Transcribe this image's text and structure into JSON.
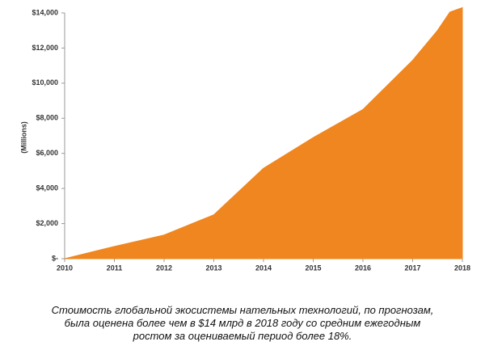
{
  "chart_data": {
    "type": "area",
    "y_label": "(Millions)",
    "x": [
      2010,
      2011,
      2012,
      2013,
      2014,
      2015,
      2016,
      2017,
      2017.5,
      2017.75,
      2018
    ],
    "values": [
      0,
      700,
      1350,
      2500,
      5150,
      6900,
      8500,
      11300,
      13000,
      14050,
      14300
    ],
    "color": "#f0861f",
    "xlim": [
      2010,
      2018
    ],
    "xticks": [
      2010,
      2011,
      2012,
      2013,
      2014,
      2015,
      2016,
      2017,
      2018
    ],
    "ylim": [
      0,
      14000
    ],
    "yticks": [
      {
        "value": 0,
        "label": "$-"
      },
      {
        "value": 2000,
        "label": "$2,000"
      },
      {
        "value": 4000,
        "label": "$4,000"
      },
      {
        "value": 6000,
        "label": "$6,000"
      },
      {
        "value": 8000,
        "label": "$8,000"
      },
      {
        "value": 10000,
        "label": "$10,000"
      },
      {
        "value": 12000,
        "label": "$12,000"
      },
      {
        "value": 14000,
        "label": "$14,000"
      }
    ],
    "grid": false,
    "caption": "Стоимость глобальной экосистемы нательных технологий, по прогнозам, была оценена более чем в $14 млрд в 2018 году со средним ежегодным ростом за оцениваемый период более 18%."
  }
}
